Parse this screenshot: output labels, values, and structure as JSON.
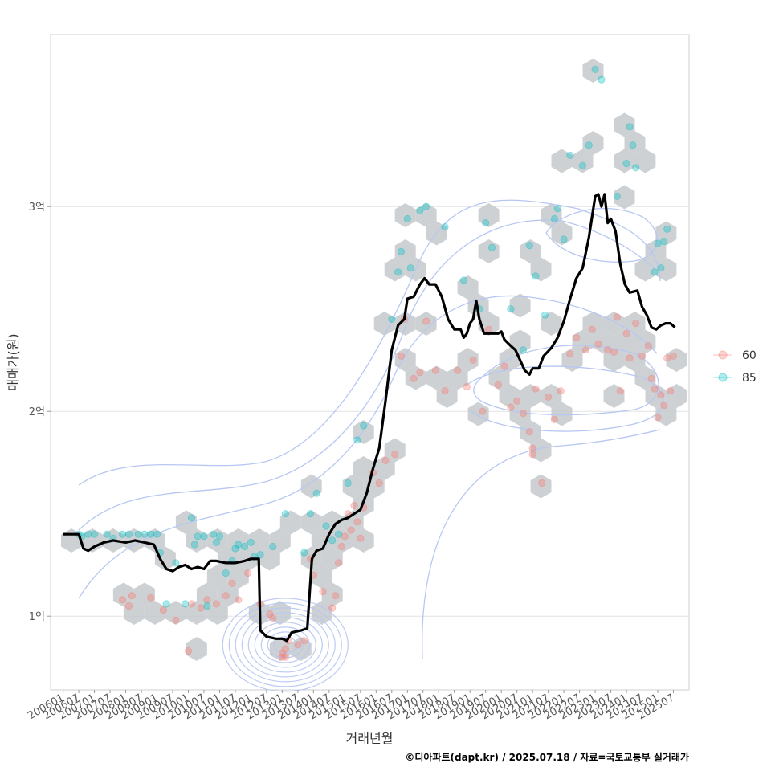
{
  "chart_data": {
    "type": "scatter",
    "xlabel": "거래년월",
    "ylabel": "매매가(원)",
    "caption": "©디아파트(dapt.kr) / 2025.07.18 / 자료=국토교통부 실거래가",
    "x_ticks": [
      "200601",
      "200607",
      "200701",
      "200707",
      "200801",
      "200807",
      "200901",
      "200907",
      "201001",
      "201007",
      "201101",
      "201107",
      "201201",
      "201207",
      "201301",
      "201307",
      "201401",
      "201407",
      "201501",
      "201507",
      "201601",
      "201607",
      "201701",
      "201707",
      "201801",
      "201807",
      "201901",
      "201907",
      "202001",
      "202007",
      "202101",
      "202107",
      "202201",
      "202207",
      "202301",
      "202307",
      "202401",
      "202407",
      "202501",
      "202507"
    ],
    "y_ticks": [
      {
        "value": 100000000,
        "label": "1억"
      },
      {
        "value": 200000000,
        "label": "2억"
      },
      {
        "value": 300000000,
        "label": "3억"
      }
    ],
    "ylim": [
      64000000,
      384000000
    ],
    "xlim": [
      2005.6,
      2026.0
    ],
    "grid": true,
    "legend": {
      "placement": "right",
      "entries": [
        {
          "name": "60",
          "color": "#f8766d"
        },
        {
          "name": "85",
          "color": "#00bfc4"
        }
      ]
    },
    "colors": {
      "line": "#000000",
      "hex": "#c5c9cd",
      "contour": "#b7c7f2",
      "series60": "#f8766d",
      "series85": "#00bfc4"
    },
    "series": [
      {
        "name": "60",
        "points": [
          [
            2007.9,
            108000000
          ],
          [
            2008.1,
            105000000
          ],
          [
            2008.2,
            110000000
          ],
          [
            2008.8,
            109000000
          ],
          [
            2009.2,
            103000000
          ],
          [
            2009.6,
            98000000
          ],
          [
            2010.0,
            83000000
          ],
          [
            2010.1,
            106000000
          ],
          [
            2010.4,
            104000000
          ],
          [
            2010.6,
            108000000
          ],
          [
            2010.9,
            106000000
          ],
          [
            2011.2,
            110000000
          ],
          [
            2011.4,
            116000000
          ],
          [
            2011.6,
            108000000
          ],
          [
            2011.9,
            121000000
          ],
          [
            2012.3,
            106000000
          ],
          [
            2012.6,
            101000000
          ],
          [
            2012.7,
            99000000
          ],
          [
            2013.0,
            80000000
          ],
          [
            2013.0,
            82000000
          ],
          [
            2013.1,
            84000000
          ],
          [
            2013.1,
            80000000
          ],
          [
            2013.2,
            88000000
          ],
          [
            2013.5,
            86000000
          ],
          [
            2013.7,
            88000000
          ],
          [
            2013.9,
            128000000
          ],
          [
            2014.0,
            120000000
          ],
          [
            2014.3,
            112000000
          ],
          [
            2014.6,
            104000000
          ],
          [
            2014.7,
            110000000
          ],
          [
            2014.8,
            126000000
          ],
          [
            2014.9,
            134000000
          ],
          [
            2015.0,
            139000000
          ],
          [
            2015.1,
            150000000
          ],
          [
            2015.2,
            142000000
          ],
          [
            2015.3,
            154000000
          ],
          [
            2015.4,
            146000000
          ],
          [
            2015.5,
            138000000
          ],
          [
            2015.6,
            153000000
          ],
          [
            2015.9,
            170000000
          ],
          [
            2016.1,
            165000000
          ],
          [
            2016.3,
            176000000
          ],
          [
            2016.6,
            179000000
          ],
          [
            2016.8,
            227000000
          ],
          [
            2016.9,
            245000000
          ],
          [
            2017.2,
            216000000
          ],
          [
            2017.4,
            219000000
          ],
          [
            2017.6,
            244000000
          ],
          [
            2017.9,
            220000000
          ],
          [
            2018.2,
            210000000
          ],
          [
            2018.6,
            220000000
          ],
          [
            2018.9,
            212000000
          ],
          [
            2019.1,
            225000000
          ],
          [
            2019.4,
            200000000
          ],
          [
            2019.6,
            240000000
          ],
          [
            2019.9,
            213000000
          ],
          [
            2020.1,
            222000000
          ],
          [
            2020.3,
            202000000
          ],
          [
            2020.5,
            205000000
          ],
          [
            2020.7,
            199000000
          ],
          [
            2020.9,
            190000000
          ],
          [
            2021.0,
            182000000
          ],
          [
            2021.0,
            179000000
          ],
          [
            2021.1,
            211000000
          ],
          [
            2021.3,
            165000000
          ],
          [
            2021.5,
            207000000
          ],
          [
            2021.7,
            196000000
          ],
          [
            2021.9,
            210000000
          ],
          [
            2022.2,
            228000000
          ],
          [
            2022.4,
            236000000
          ],
          [
            2022.7,
            230000000
          ],
          [
            2022.9,
            240000000
          ],
          [
            2023.1,
            233000000
          ],
          [
            2023.4,
            230000000
          ],
          [
            2023.6,
            229000000
          ],
          [
            2023.7,
            246000000
          ],
          [
            2023.8,
            210000000
          ],
          [
            2024.0,
            238000000
          ],
          [
            2024.1,
            226000000
          ],
          [
            2024.3,
            243000000
          ],
          [
            2024.5,
            227000000
          ],
          [
            2024.7,
            232000000
          ],
          [
            2024.8,
            216000000
          ],
          [
            2024.9,
            211000000
          ],
          [
            2025.0,
            197000000
          ],
          [
            2025.1,
            208000000
          ],
          [
            2025.2,
            203000000
          ],
          [
            2025.3,
            226000000
          ],
          [
            2025.4,
            210000000
          ],
          [
            2025.5,
            227000000
          ]
        ]
      },
      {
        "name": "85",
        "points": [
          [
            2006.5,
            140000000
          ],
          [
            2006.6,
            139000000
          ],
          [
            2006.8,
            140000000
          ],
          [
            2007.0,
            140000000
          ],
          [
            2007.4,
            140000000
          ],
          [
            2007.6,
            138000000
          ],
          [
            2007.9,
            140000000
          ],
          [
            2008.1,
            140000000
          ],
          [
            2008.4,
            140000000
          ],
          [
            2008.6,
            140000000
          ],
          [
            2008.8,
            140000000
          ],
          [
            2009.0,
            140000000
          ],
          [
            2009.1,
            131000000
          ],
          [
            2009.3,
            106000000
          ],
          [
            2009.6,
            126000000
          ],
          [
            2009.9,
            106000000
          ],
          [
            2010.1,
            148000000
          ],
          [
            2010.2,
            135000000
          ],
          [
            2010.3,
            139000000
          ],
          [
            2010.5,
            139000000
          ],
          [
            2010.6,
            105000000
          ],
          [
            2010.8,
            140000000
          ],
          [
            2010.9,
            136000000
          ],
          [
            2011.0,
            139000000
          ],
          [
            2011.2,
            121000000
          ],
          [
            2011.4,
            127000000
          ],
          [
            2011.5,
            133000000
          ],
          [
            2011.6,
            135000000
          ],
          [
            2011.8,
            134000000
          ],
          [
            2012.0,
            136000000
          ],
          [
            2012.1,
            129000000
          ],
          [
            2012.3,
            130000000
          ],
          [
            2012.7,
            134000000
          ],
          [
            2013.1,
            150000000
          ],
          [
            2013.7,
            131000000
          ],
          [
            2013.9,
            150000000
          ],
          [
            2014.1,
            160000000
          ],
          [
            2014.4,
            144000000
          ],
          [
            2014.6,
            137000000
          ],
          [
            2014.8,
            140000000
          ],
          [
            2015.1,
            165000000
          ],
          [
            2015.4,
            186000000
          ],
          [
            2015.6,
            193000000
          ],
          [
            2016.5,
            245000000
          ],
          [
            2016.7,
            268000000
          ],
          [
            2016.8,
            278000000
          ],
          [
            2017.0,
            294000000
          ],
          [
            2017.1,
            270000000
          ],
          [
            2017.4,
            298000000
          ],
          [
            2017.6,
            300000000
          ],
          [
            2018.2,
            290000000
          ],
          [
            2018.8,
            264000000
          ],
          [
            2019.3,
            250000000
          ],
          [
            2019.5,
            292000000
          ],
          [
            2019.7,
            280000000
          ],
          [
            2020.3,
            250000000
          ],
          [
            2020.7,
            230000000
          ],
          [
            2020.9,
            281000000
          ],
          [
            2021.1,
            266000000
          ],
          [
            2021.4,
            247000000
          ],
          [
            2021.7,
            294000000
          ],
          [
            2021.8,
            299000000
          ],
          [
            2022.0,
            284000000
          ],
          [
            2022.2,
            325000000
          ],
          [
            2022.6,
            320000000
          ],
          [
            2022.8,
            330000000
          ],
          [
            2023.0,
            367000000
          ],
          [
            2023.2,
            362000000
          ],
          [
            2023.7,
            305000000
          ],
          [
            2024.0,
            321000000
          ],
          [
            2024.1,
            339000000
          ],
          [
            2024.2,
            330000000
          ],
          [
            2024.3,
            319000000
          ],
          [
            2024.9,
            268000000
          ],
          [
            2025.0,
            282000000
          ],
          [
            2025.1,
            270000000
          ],
          [
            2025.2,
            283000000
          ],
          [
            2025.3,
            289000000
          ]
        ]
      }
    ],
    "trend_line": [
      [
        2006.0,
        140000000
      ],
      [
        2006.5,
        140000000
      ],
      [
        2006.65,
        133000000
      ],
      [
        2006.8,
        132000000
      ],
      [
        2007.0,
        134000000
      ],
      [
        2007.3,
        136000000
      ],
      [
        2007.6,
        137000000
      ],
      [
        2008.0,
        136000000
      ],
      [
        2008.3,
        137000000
      ],
      [
        2008.6,
        136000000
      ],
      [
        2008.9,
        135000000
      ],
      [
        2009.1,
        128000000
      ],
      [
        2009.3,
        123000000
      ],
      [
        2009.5,
        122000000
      ],
      [
        2009.7,
        124000000
      ],
      [
        2009.9,
        125000000
      ],
      [
        2010.1,
        123000000
      ],
      [
        2010.3,
        124000000
      ],
      [
        2010.5,
        123000000
      ],
      [
        2010.7,
        127000000
      ],
      [
        2010.9,
        127000000
      ],
      [
        2011.2,
        126000000
      ],
      [
        2011.5,
        126000000
      ],
      [
        2011.8,
        127000000
      ],
      [
        2012.0,
        128000000
      ],
      [
        2012.25,
        128000000
      ],
      [
        2012.3,
        93000000
      ],
      [
        2012.5,
        90000000
      ],
      [
        2012.8,
        89000000
      ],
      [
        2013.0,
        89000000
      ],
      [
        2013.15,
        88000000
      ],
      [
        2013.3,
        92000000
      ],
      [
        2013.6,
        93000000
      ],
      [
        2013.8,
        94000000
      ],
      [
        2013.95,
        128000000
      ],
      [
        2014.1,
        132000000
      ],
      [
        2014.3,
        133000000
      ],
      [
        2014.5,
        140000000
      ],
      [
        2014.7,
        145000000
      ],
      [
        2014.9,
        147000000
      ],
      [
        2015.1,
        148000000
      ],
      [
        2015.3,
        150000000
      ],
      [
        2015.5,
        152000000
      ],
      [
        2015.7,
        160000000
      ],
      [
        2015.9,
        172000000
      ],
      [
        2016.1,
        182000000
      ],
      [
        2016.3,
        205000000
      ],
      [
        2016.5,
        230000000
      ],
      [
        2016.7,
        242000000
      ],
      [
        2016.9,
        245000000
      ],
      [
        2017.0,
        255000000
      ],
      [
        2017.2,
        256000000
      ],
      [
        2017.4,
        262000000
      ],
      [
        2017.55,
        265000000
      ],
      [
        2017.7,
        262000000
      ],
      [
        2017.9,
        262000000
      ],
      [
        2018.1,
        256000000
      ],
      [
        2018.3,
        245000000
      ],
      [
        2018.5,
        240000000
      ],
      [
        2018.7,
        240000000
      ],
      [
        2018.8,
        236000000
      ],
      [
        2018.9,
        238000000
      ],
      [
        2019.0,
        243000000
      ],
      [
        2019.1,
        245000000
      ],
      [
        2019.2,
        254000000
      ],
      [
        2019.3,
        245000000
      ],
      [
        2019.45,
        238000000
      ],
      [
        2019.7,
        238000000
      ],
      [
        2019.9,
        238000000
      ],
      [
        2020.0,
        239000000
      ],
      [
        2020.1,
        235000000
      ],
      [
        2020.3,
        232000000
      ],
      [
        2020.45,
        230000000
      ],
      [
        2020.6,
        225000000
      ],
      [
        2020.75,
        220000000
      ],
      [
        2020.9,
        218000000
      ],
      [
        2021.0,
        221000000
      ],
      [
        2021.2,
        221000000
      ],
      [
        2021.35,
        227000000
      ],
      [
        2021.6,
        231000000
      ],
      [
        2021.8,
        236000000
      ],
      [
        2022.0,
        244000000
      ],
      [
        2022.2,
        255000000
      ],
      [
        2022.4,
        265000000
      ],
      [
        2022.6,
        270000000
      ],
      [
        2022.8,
        285000000
      ],
      [
        2023.0,
        305000000
      ],
      [
        2023.1,
        306000000
      ],
      [
        2023.2,
        300000000
      ],
      [
        2023.3,
        306000000
      ],
      [
        2023.4,
        292000000
      ],
      [
        2023.5,
        294000000
      ],
      [
        2023.65,
        288000000
      ],
      [
        2023.8,
        272000000
      ],
      [
        2023.95,
        262000000
      ],
      [
        2024.1,
        258000000
      ],
      [
        2024.35,
        259000000
      ],
      [
        2024.5,
        251000000
      ],
      [
        2024.65,
        247000000
      ],
      [
        2024.8,
        241000000
      ],
      [
        2024.95,
        240000000
      ],
      [
        2025.1,
        242000000
      ],
      [
        2025.25,
        243000000
      ],
      [
        2025.4,
        243000000
      ],
      [
        2025.55,
        241000000
      ]
    ]
  }
}
